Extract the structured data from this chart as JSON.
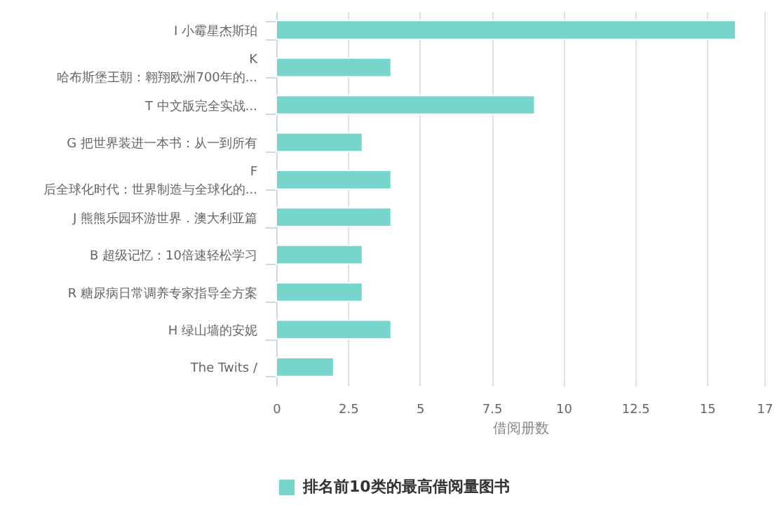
{
  "chart_data": {
    "type": "bar",
    "orientation": "horizontal",
    "xlabel": "借阅册数",
    "categories": [
      "I 小霉星杰斯珀",
      "K\n哈布斯堡王朝：翱翔欧洲700年的...",
      "T 中文版完全实战...",
      "G 把世界装进一本书：从一到所有",
      "F\n后全球化时代：世界制造与全球化的...",
      "J 熊熊乐园环游世界．澳大利亚篇",
      "B 超级记忆：10倍速轻松学习",
      "R 糖尿病日常调养专家指导全方案",
      "H 绿山墙的安妮",
      "The Twits /"
    ],
    "series": [
      {
        "name": "排名前10类的最高借阅量图书",
        "color": "#77d5cc",
        "values": [
          16,
          4,
          9,
          3,
          4,
          4,
          3,
          3,
          4,
          2
        ]
      }
    ],
    "xlim": [
      0,
      17
    ],
    "xticks": [
      0,
      2.5,
      5,
      7.5,
      10,
      12.5,
      15,
      17
    ],
    "grid": "x",
    "legend": "bottom"
  }
}
